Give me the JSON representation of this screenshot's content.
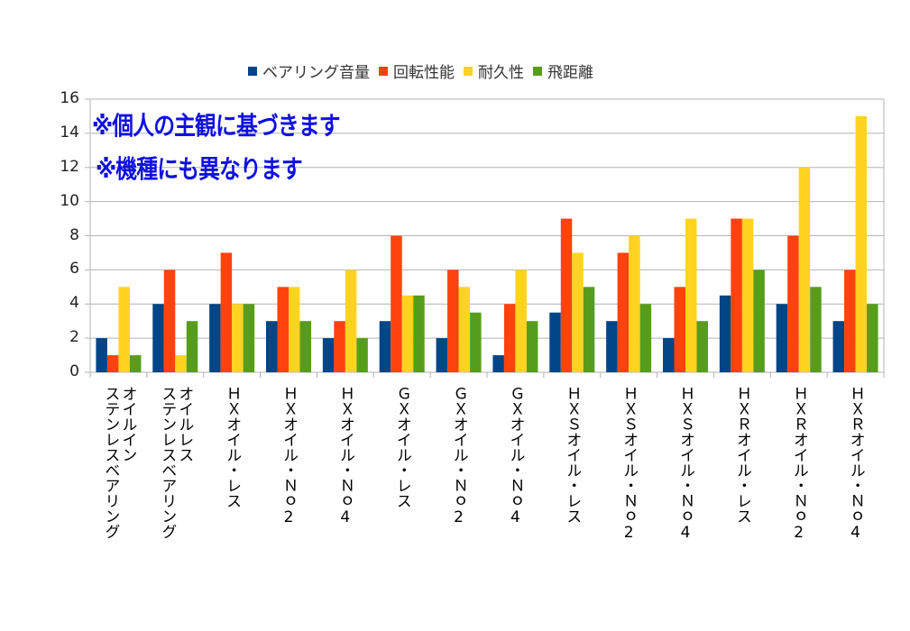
{
  "chart_data": {
    "type": "bar",
    "title": "",
    "xlabel": "",
    "ylabel": "",
    "ylim": [
      0,
      16
    ],
    "yticks": [
      "0",
      "2",
      "4",
      "6",
      "8",
      "10",
      "12",
      "14",
      "16"
    ],
    "grid": true,
    "legend_position": "top",
    "annotations": [
      "※個人の主観に基づきます",
      "※機種にも異なります"
    ],
    "annotation_color": "#1010e0",
    "categories": [
      "オイルイン\nステンレスベアリング",
      "オイルレス\nステンレスベアリング",
      "ＨＸオイル・レス",
      "ＨＸオイル・Ｎｏ2",
      "ＨＸオイル・Ｎｏ4",
      "ＧＸオイル・レス",
      "ＧＸオイル・Ｎｏ2",
      "ＧＸオイル・Ｎｏ4",
      "ＨＸＳオイル・レス",
      "ＨＸＳオイル・Ｎｏ2",
      "ＨＸＳオイル・Ｎｏ4",
      "ＨＸＲオイル・レス",
      "ＨＸＲオイル・Ｎｏ2",
      "ＨＸＲオイル・Ｎｏ4"
    ],
    "series": [
      {
        "name": "ベアリング音量",
        "color": "#004586",
        "values": [
          2,
          4,
          4,
          3,
          2,
          3,
          2,
          1,
          3.5,
          3,
          2,
          4.5,
          4,
          3
        ]
      },
      {
        "name": "回転性能",
        "color": "#ff420e",
        "values": [
          1,
          6,
          7,
          5,
          3,
          8,
          6,
          4,
          9,
          7,
          5,
          9,
          8,
          6
        ]
      },
      {
        "name": "耐久性",
        "color": "#ffd320",
        "values": [
          5,
          1,
          4,
          5,
          6,
          4.5,
          5,
          6,
          7,
          8,
          9,
          9,
          12,
          15
        ]
      },
      {
        "name": "飛距離",
        "color": "#579d1c",
        "values": [
          1,
          3,
          4,
          3,
          2,
          4.5,
          3.5,
          3,
          5,
          4,
          3,
          6,
          5,
          4
        ]
      }
    ]
  }
}
